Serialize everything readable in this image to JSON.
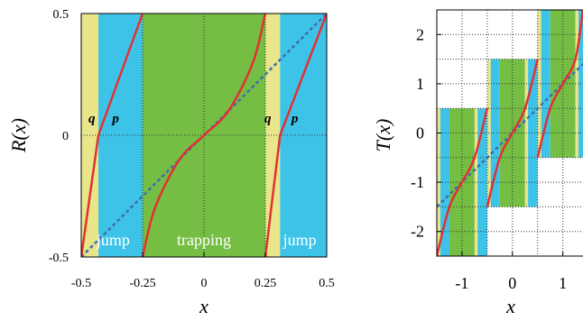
{
  "chart_data": [
    {
      "type": "line",
      "xlabel": "x",
      "ylabel": "R(x)",
      "xlim": [
        -0.5,
        0.5
      ],
      "ylim": [
        -0.5,
        0.5
      ],
      "xticks": [
        "-0.5",
        "-0.25",
        "0",
        "0.25",
        "0.5"
      ],
      "yticks": [
        "-0.5",
        "0",
        "0.5"
      ],
      "grid": "dotted",
      "colors": {
        "jump": "#3ec3e8",
        "trapping": "#75be43",
        "boundary": "#e9e58a",
        "curve": "#e03232",
        "diagonal": "#3e6fb0"
      },
      "bands": [
        {
          "kind": "boundary",
          "x0": -0.5,
          "x1": -0.43
        },
        {
          "kind": "jump",
          "x0": -0.43,
          "x1": -0.25
        },
        {
          "kind": "trapping",
          "x0": -0.25,
          "x1": 0.25
        },
        {
          "kind": "boundary",
          "x0": 0.25,
          "x1": 0.31
        },
        {
          "kind": "jump",
          "x0": 0.31,
          "x1": 0.5
        }
      ],
      "region_labels": [
        {
          "text": "jump",
          "x": -0.37,
          "y": -0.43
        },
        {
          "text": "trapping",
          "x": 0.0,
          "y": -0.43
        },
        {
          "text": "jump",
          "x": 0.39,
          "y": -0.43
        }
      ],
      "branch_labels": [
        {
          "text": "q",
          "x": -0.457,
          "y": 0.07
        },
        {
          "text": "p",
          "x": -0.36,
          "y": 0.07
        },
        {
          "text": "q",
          "x": 0.26,
          "y": 0.07
        },
        {
          "text": "p",
          "x": 0.37,
          "y": 0.07
        }
      ],
      "series": [
        {
          "x": [
            -0.5,
            -0.43
          ],
          "y": [
            -0.5,
            0.0
          ]
        },
        {
          "x": [
            -0.43,
            -0.25
          ],
          "y": [
            0.0,
            0.5
          ]
        },
        {
          "x": [
            -0.25,
            -0.2,
            -0.1,
            0.0,
            0.1,
            0.2,
            0.25
          ],
          "y": [
            -0.5,
            -0.3,
            -0.1,
            0.0,
            0.1,
            0.3,
            0.5
          ]
        },
        {
          "x": [
            0.25,
            0.31
          ],
          "y": [
            -0.5,
            0.0
          ]
        },
        {
          "x": [
            0.31,
            0.5
          ],
          "y": [
            0.0,
            0.5
          ]
        }
      ],
      "diagonal": {
        "x": [
          -0.5,
          0.5
        ],
        "y": [
          -0.5,
          0.5
        ]
      }
    },
    {
      "type": "line",
      "xlabel": "x",
      "ylabel": "T(x)",
      "xlim": [
        -1.5,
        1.4
      ],
      "ylim": [
        -2.5,
        2.5
      ],
      "xticks": [
        "-1",
        "0",
        "1"
      ],
      "yticks": [
        "-2",
        "-1",
        "0",
        "1",
        "2"
      ],
      "grid": "dotted",
      "cells": [
        {
          "x0": -1.5,
          "x1": -0.5,
          "y0": -2.5,
          "y1": 0.5
        },
        {
          "x0": -0.5,
          "x1": 0.5,
          "y0": -1.5,
          "y1": 1.5
        },
        {
          "x0": 0.5,
          "x1": 1.4,
          "y0": -0.5,
          "y1": 2.5
        }
      ],
      "series": [
        {
          "x": [
            -1.5,
            -1.25,
            -1.0,
            -0.75,
            -0.5
          ],
          "y": [
            -2.5,
            -1.5,
            -1.0,
            -0.5,
            0.5
          ]
        },
        {
          "x": [
            -0.5,
            -0.25,
            0.0,
            0.25,
            0.5
          ],
          "y": [
            -1.5,
            -0.5,
            0.0,
            0.5,
            1.5
          ]
        },
        {
          "x": [
            0.5,
            0.75,
            1.0,
            1.25,
            1.4
          ],
          "y": [
            -0.5,
            0.5,
            1.0,
            1.5,
            2.5
          ]
        }
      ],
      "diagonal": {
        "x": [
          -1.5,
          1.4
        ],
        "y": [
          -1.5,
          1.4
        ]
      }
    }
  ]
}
